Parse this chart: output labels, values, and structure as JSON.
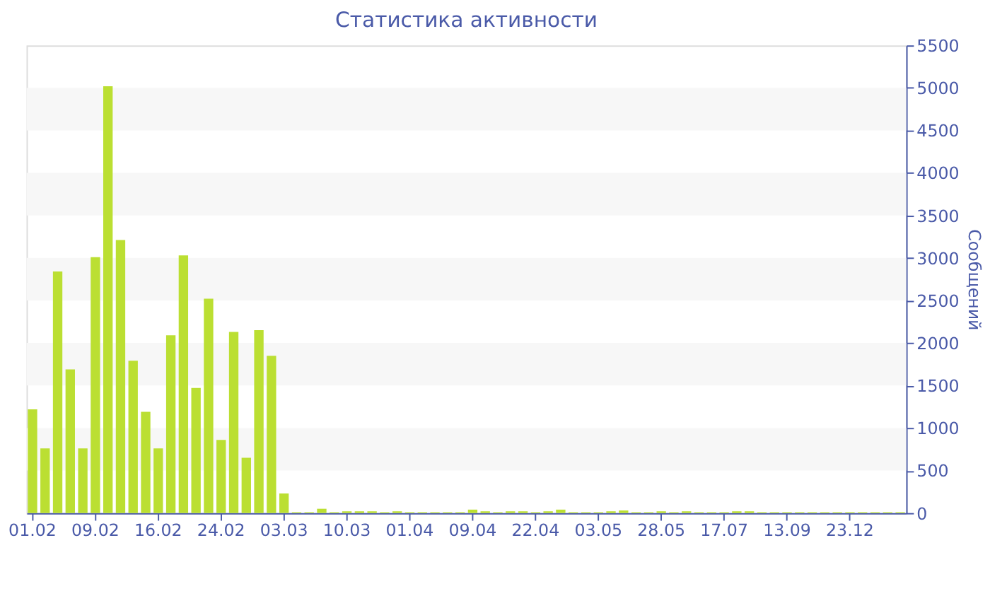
{
  "chart_data": {
    "type": "bar",
    "title": "Статистика активности",
    "ylabel": "Сообщений",
    "categories": [
      "01.02",
      null,
      null,
      null,
      null,
      "09.02",
      null,
      null,
      null,
      null,
      "16.02",
      null,
      null,
      null,
      null,
      "24.02",
      null,
      null,
      null,
      null,
      "03.03",
      null,
      null,
      null,
      null,
      "10.03",
      null,
      null,
      null,
      null,
      "01.04",
      null,
      null,
      null,
      null,
      "09.04",
      null,
      null,
      null,
      null,
      "22.04",
      null,
      null,
      null,
      null,
      "03.05",
      null,
      null,
      null,
      null,
      "28.05",
      null,
      null,
      null,
      null,
      "17.07",
      null,
      null,
      null,
      null,
      "13.09",
      null,
      null,
      null,
      null,
      "23.12",
      null,
      null,
      null,
      null
    ],
    "values": [
      1220,
      760,
      2840,
      1690,
      760,
      3010,
      5020,
      3210,
      1790,
      1190,
      760,
      2090,
      3030,
      1470,
      2520,
      860,
      2130,
      650,
      2150,
      1850,
      230,
      10,
      10,
      50,
      10,
      20,
      20,
      20,
      10,
      20,
      10,
      10,
      10,
      10,
      10,
      40,
      20,
      10,
      20,
      20,
      10,
      20,
      40,
      10,
      10,
      10,
      20,
      30,
      10,
      10,
      20,
      10,
      20,
      10,
      10,
      10,
      20,
      20,
      10,
      10,
      10,
      10,
      10,
      10,
      10,
      10,
      10,
      10,
      10,
      10
    ],
    "color": "#bbdf32",
    "ylim": [
      0,
      5500
    ],
    "yticks": [
      0,
      500,
      1000,
      1500,
      2000,
      2500,
      3000,
      3500,
      4000,
      4500,
      5000,
      5500
    ],
    "bands": [
      {
        "axis": "y",
        "from": 500,
        "to": 1000,
        "color": "#f7f7f7"
      },
      {
        "axis": "y",
        "from": 1500,
        "to": 2000,
        "color": "#f7f7f7"
      },
      {
        "axis": "y",
        "from": 2500,
        "to": 3000,
        "color": "#f7f7f7"
      },
      {
        "axis": "y",
        "from": 3500,
        "to": 4000,
        "color": "#f7f7f7"
      },
      {
        "axis": "y",
        "from": 4500,
        "to": 5000,
        "color": "#f7f7f7"
      }
    ],
    "grid": false
  }
}
